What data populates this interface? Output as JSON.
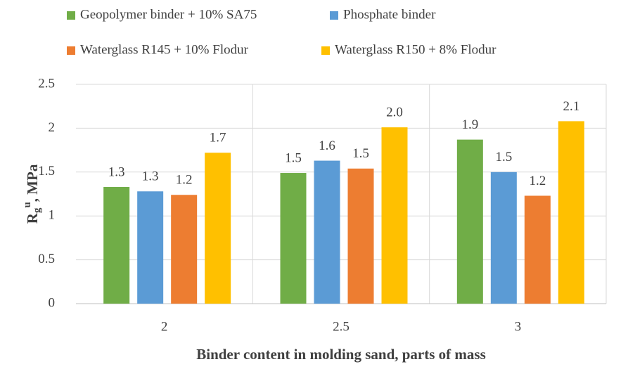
{
  "chart_data": {
    "type": "bar",
    "categories": [
      "2",
      "2.5",
      "3"
    ],
    "series": [
      {
        "name": "Geopolymer binder + 10% SA75",
        "color": "#70ad47",
        "values": [
          1.33,
          1.49,
          1.87
        ],
        "value_labels": [
          "1.3",
          "1.5",
          "1.9"
        ]
      },
      {
        "name": "Phosphate binder",
        "color": "#5b9bd5",
        "values": [
          1.28,
          1.63,
          1.5
        ],
        "value_labels": [
          "1.3",
          "1.6",
          "1.5"
        ]
      },
      {
        "name": "Waterglass R145 + 10% Flodur",
        "color": "#ed7d31",
        "values": [
          1.24,
          1.54,
          1.23
        ],
        "value_labels": [
          "1.2",
          "1.5",
          "1.2"
        ]
      },
      {
        "name": "Waterglass R150 + 8% Flodur",
        "color": "#ffc000",
        "values": [
          1.72,
          2.01,
          2.08
        ],
        "value_labels": [
          "1.7",
          "2.0",
          "2.1"
        ]
      }
    ],
    "ylim": [
      0,
      2.5
    ],
    "yticks": [
      0,
      0.5,
      1,
      1.5,
      2,
      2.5
    ],
    "grid": true,
    "xlabel": "Binder content in molding sand, parts of mass",
    "ylabel": {
      "base": "R",
      "sub": "g",
      "sup": "u",
      "rest": ", MPa"
    }
  }
}
